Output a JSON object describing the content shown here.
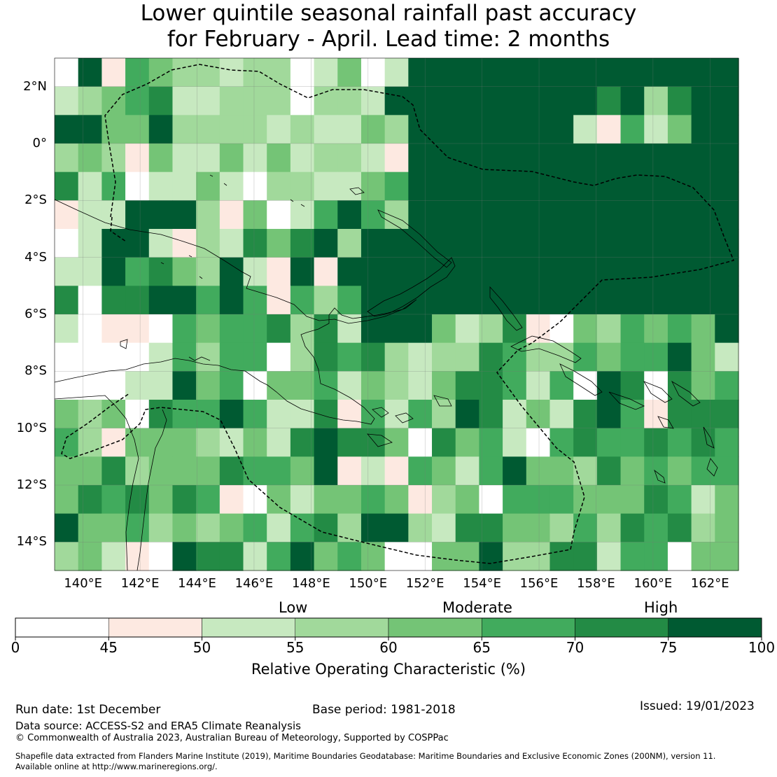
{
  "title_line1": "Lower quintile seasonal rainfall past accuracy",
  "title_line2": "for February - April. Lead time: 2 months",
  "map": {
    "lon_min": 139,
    "lon_max": 163,
    "lat_min": -15,
    "lat_max": 3,
    "lon_ticks": [
      "140°E",
      "142°E",
      "144°E",
      "146°E",
      "148°E",
      "150°E",
      "152°E",
      "154°E",
      "156°E",
      "158°E",
      "160°E",
      "162°E"
    ],
    "lat_ticks": [
      "2°N",
      "0°",
      "2°S",
      "4°S",
      "6°S",
      "8°S",
      "10°S",
      "12°S",
      "14°S"
    ]
  },
  "colorbar": {
    "categories": [
      "Low",
      "Moderate",
      "High"
    ],
    "ticks": [
      "0",
      "45",
      "50",
      "55",
      "60",
      "65",
      "70",
      "75",
      "100"
    ],
    "colors": [
      "#ffffff",
      "#fde9e1",
      "#c7e9c0",
      "#a1d99b",
      "#74c476",
      "#41ab5d",
      "#238b45",
      "#005a32"
    ],
    "label": "Relative Operating Characteristic (%)"
  },
  "footer": {
    "run_date": "Run date: 1st December",
    "base_period": "Base period: 1981-2018",
    "issued": "Issued: 19/01/2023",
    "data_source": "Data source: ACCESS-S2 and ERA5 Climate Reanalysis",
    "copyright": "© Commonwealth of Australia 2023, Australian Bureau of Meteorology, Supported by COSPPac",
    "shapefile_line1": "Shapefile data extracted from Flanders Marine Institute (2019), Maritime Boundaries Geodatabase: Maritime Boundaries and Exclusive Economic Zones (200NM), version 11.",
    "shapefile_line2": "Available online at http://www.marineregions.org/."
  }
}
